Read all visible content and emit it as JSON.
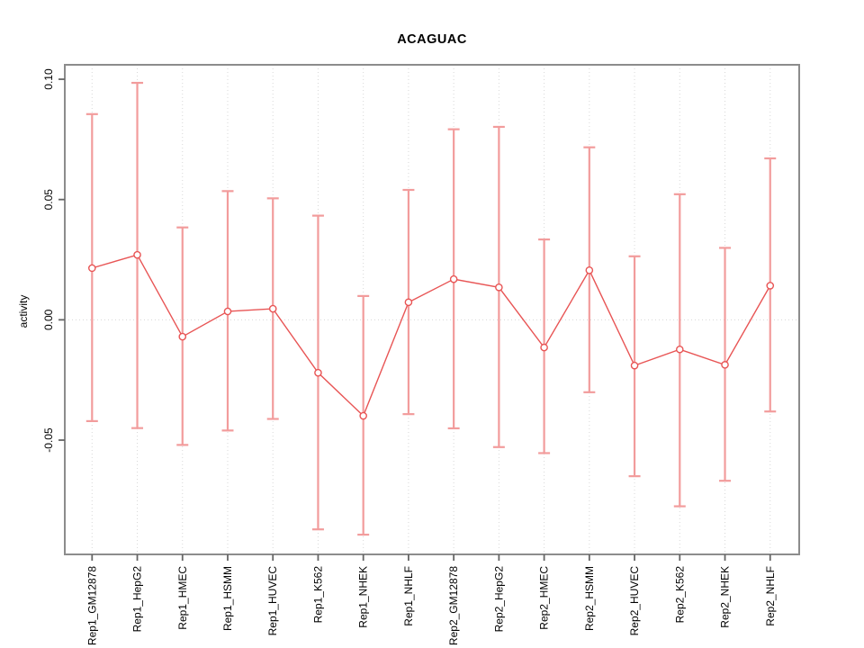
{
  "chart_data": {
    "type": "line",
    "title": "ACAGUAC",
    "xlabel": "",
    "ylabel": "activity",
    "categories": [
      "Rep1_GM12878",
      "Rep1_HepG2",
      "Rep1_HMEC",
      "Rep1_HSMM",
      "Rep1_HUVEC",
      "Rep1_K562",
      "Rep1_NHEK",
      "Rep1_NHLF",
      "Rep2_GM12878",
      "Rep2_HepG2",
      "Rep2_HMEC",
      "Rep2_HSMM",
      "Rep2_HUVEC",
      "Rep2_K562",
      "Rep2_NHEK",
      "Rep2_NHLF"
    ],
    "series": [
      {
        "name": "activity",
        "values": [
          0.0215,
          0.027,
          -0.007,
          0.0035,
          0.0046,
          -0.022,
          -0.0399,
          0.0073,
          0.0169,
          0.0135,
          -0.0115,
          0.0206,
          -0.019,
          -0.0123,
          -0.0187,
          0.0142
        ],
        "upper": [
          0.0855,
          0.0985,
          0.0384,
          0.0535,
          0.0505,
          0.0433,
          0.0099,
          0.054,
          0.0792,
          0.0802,
          0.0334,
          0.0717,
          0.0264,
          0.0522,
          0.0299,
          0.0671
        ],
        "lower": [
          -0.0421,
          -0.045,
          -0.052,
          -0.046,
          -0.0412,
          -0.0871,
          -0.0893,
          -0.0392,
          -0.0451,
          -0.0529,
          -0.0554,
          -0.0301,
          -0.065,
          -0.0775,
          -0.0669,
          -0.0381
        ]
      }
    ],
    "ylim": [
      -0.0975,
      0.106
    ],
    "yticks": [
      -0.05,
      0,
      0.05,
      0.1
    ],
    "ytick_labels": [
      "-0.05",
      "0.00",
      "0.05",
      "0.10"
    ],
    "grid": {
      "vertical": "per-category",
      "horizontal": "zero-line-only",
      "style": "dotted"
    },
    "legend": "none",
    "colors": {
      "line": "#E85555",
      "point": "#E85555",
      "error_bar": "#F29C9C",
      "frame": "#8C8C8C",
      "tick": "#666666",
      "gridline": "#D8D8D8",
      "text": "#000000",
      "background": "#FFFFFF"
    }
  }
}
